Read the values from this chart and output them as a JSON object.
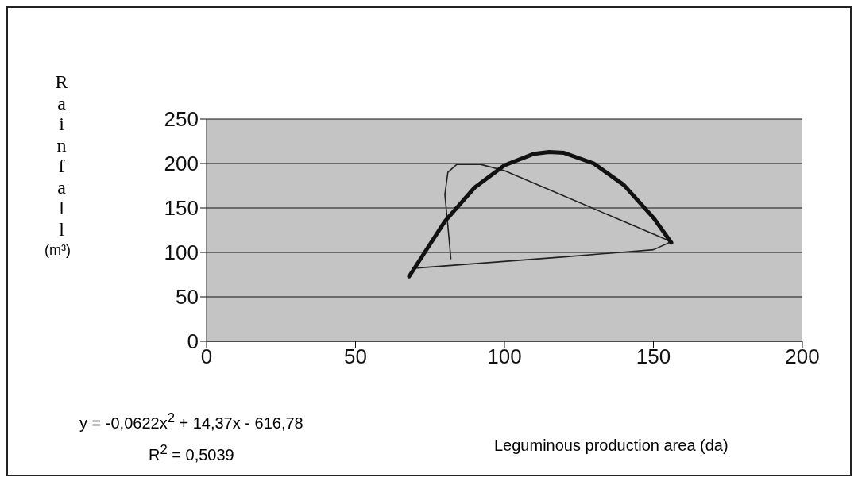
{
  "chart_data": {
    "type": "line",
    "xlabel": "Leguminous production area (da)",
    "ylabel": "Rainfall (m³)",
    "series": [
      {
        "color": "#222222",
        "x": [
          82,
          81,
          80,
          81,
          84,
          92,
          100,
          156,
          150,
          120,
          69
        ],
        "values": [
          93,
          130,
          165,
          190,
          199,
          199,
          192,
          112,
          103,
          95,
          82
        ]
      },
      {
        "type": "line",
        "color": "#111111",
        "x": [
          68,
          80,
          90,
          100,
          110,
          115,
          120,
          130,
          140,
          150,
          156
        ],
        "values": [
          73,
          135,
          173,
          198,
          211,
          213,
          212,
          200,
          176,
          139,
          111
        ]
      }
    ],
    "annotations": [
      "y = -0,0622x$^{2}$ + 14,37x - 616,78",
      "R$^{2}$ = 0,5039"
    ],
    "xlim": [
      0,
      200
    ],
    "xticks": [
      0,
      50,
      100,
      150,
      200
    ],
    "ylim": [
      0,
      250
    ],
    "yticks": [
      0,
      50,
      100,
      150,
      200,
      250
    ],
    "grid": "y",
    "marker": "none"
  }
}
